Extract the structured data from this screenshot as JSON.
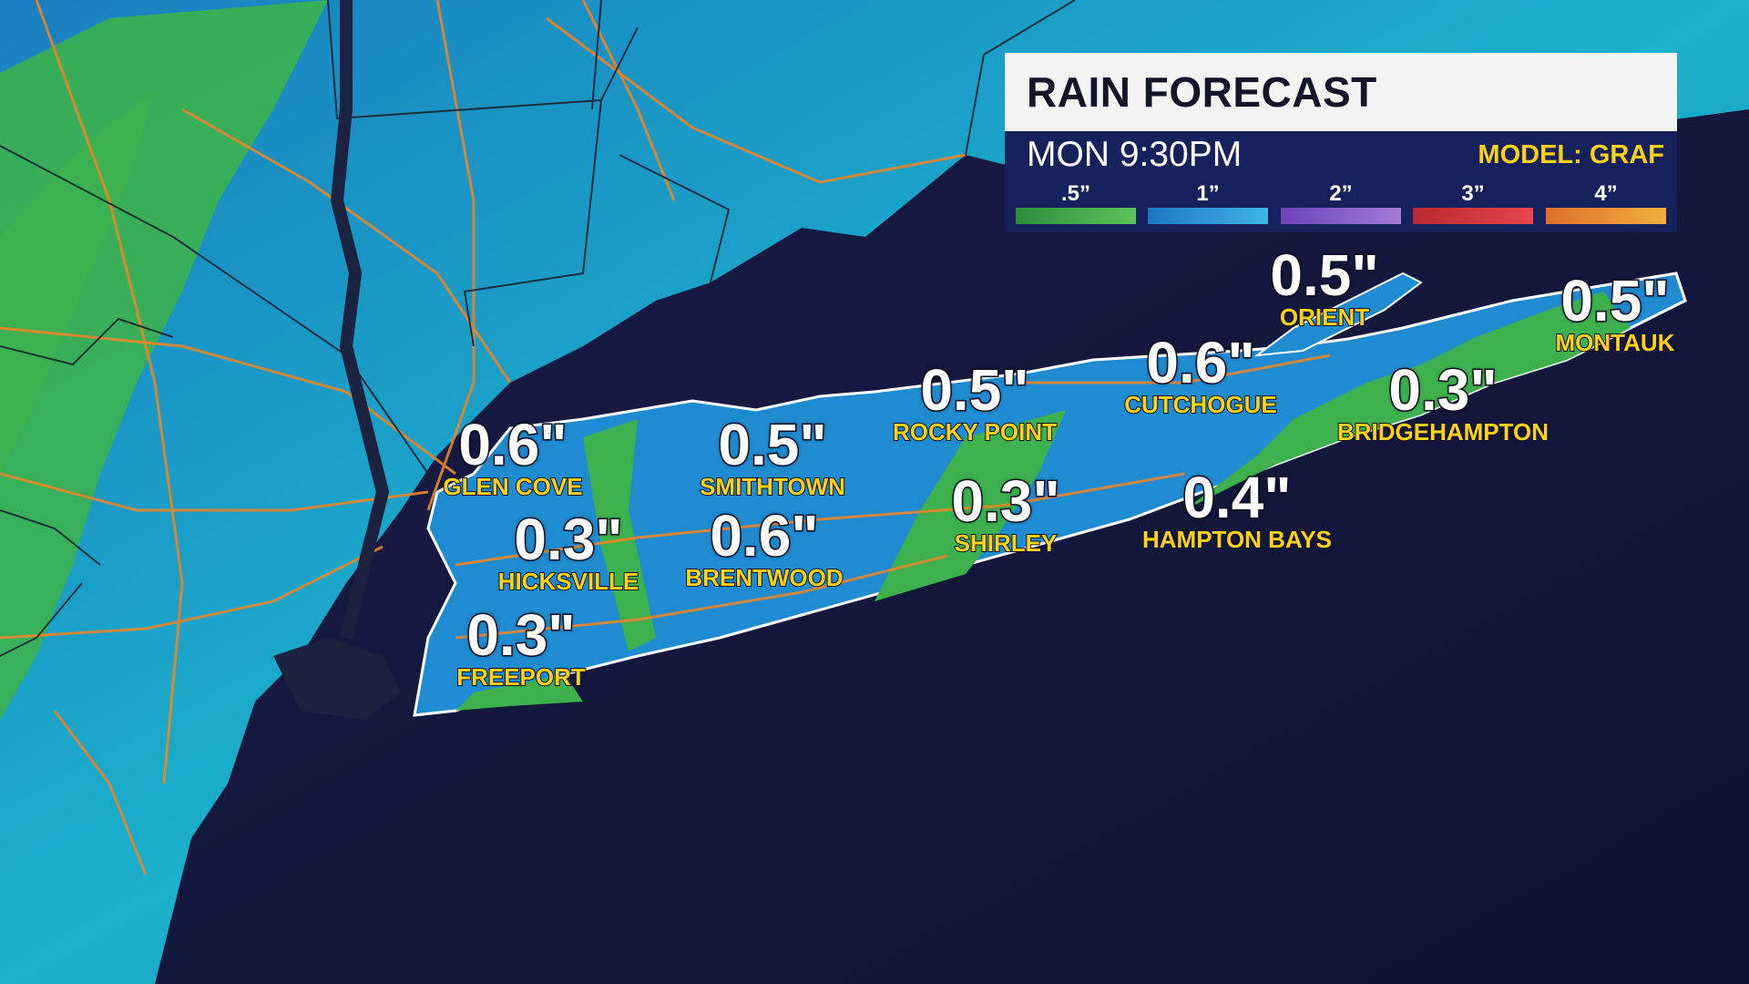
{
  "legend": {
    "title": "RAIN FORECAST",
    "time": "MON 9:30PM",
    "model": "MODEL: GRAF",
    "scale": [
      {
        "label": ".5”",
        "color": "#3aa84a"
      },
      {
        "label": "1”",
        "color": "#2f9ad8"
      },
      {
        "label": "2”",
        "color": "#8a5fc8"
      },
      {
        "label": "3”",
        "color": "#d8353a"
      },
      {
        "label": "4”",
        "color": "#e88a30"
      }
    ]
  },
  "cities": [
    {
      "name": "GLEN COVE",
      "value": "0.6\""
    },
    {
      "name": "SMITHTOWN",
      "value": "0.5\""
    },
    {
      "name": "ROCKY POINT",
      "value": "0.5\""
    },
    {
      "name": "CUTCHOGUE",
      "value": "0.6\""
    },
    {
      "name": "ORIENT",
      "value": "0.5\""
    },
    {
      "name": "MONTAUK",
      "value": "0.5\""
    },
    {
      "name": "BRIDGEHAMPTON",
      "value": "0.3\""
    },
    {
      "name": "HICKSVILLE",
      "value": "0.3\""
    },
    {
      "name": "BRENTWOOD",
      "value": "0.6\""
    },
    {
      "name": "SHIRLEY",
      "value": "0.3\""
    },
    {
      "name": "HAMPTON BAYS",
      "value": "0.4\""
    },
    {
      "name": "FREEPORT",
      "value": "0.3\""
    }
  ],
  "colors": {
    "ocean": "#13163a",
    "land_rain": "#1f8fc4",
    "land_light": "#3cb14e",
    "roads": "#e8862a",
    "borders": "#1b2530",
    "coastline": "#ffffff"
  }
}
